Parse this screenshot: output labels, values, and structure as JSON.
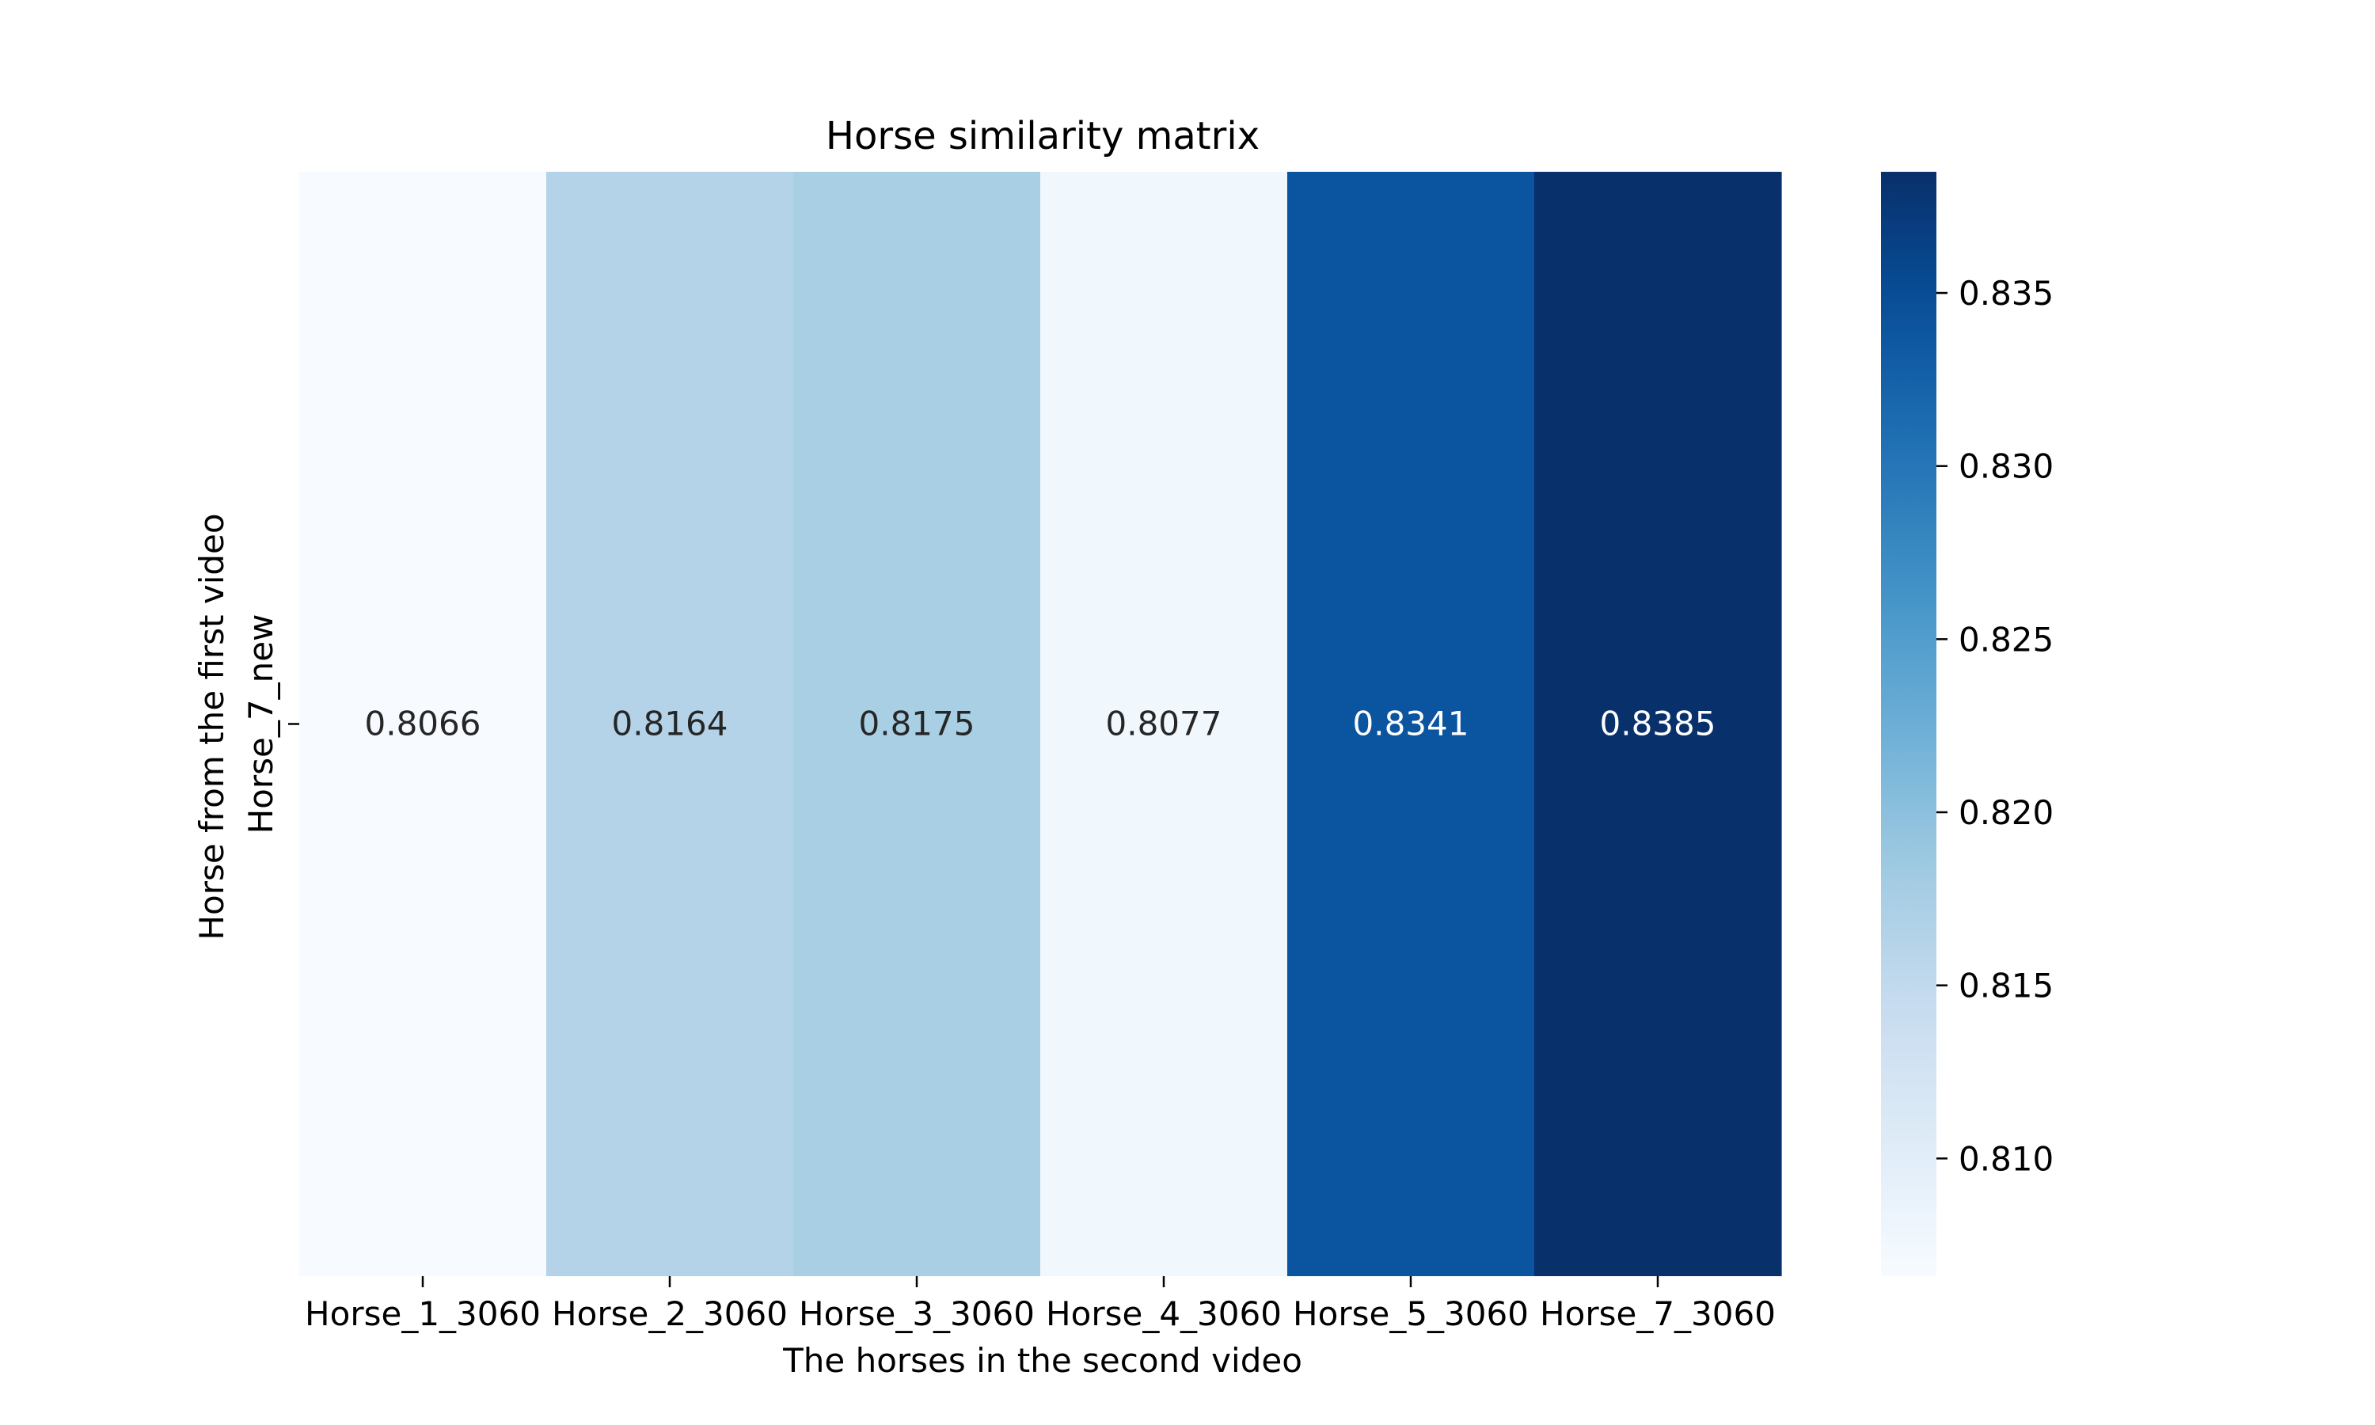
{
  "chart_data": {
    "type": "heatmap",
    "title": "Horse similarity matrix",
    "xlabel": "The horses in the second video",
    "ylabel": "Horse from the first video",
    "x_categories": [
      "Horse_1_3060",
      "Horse_2_3060",
      "Horse_3_3060",
      "Horse_4_3060",
      "Horse_5_3060",
      "Horse_7_3060"
    ],
    "y_categories": [
      "Horse_7_new"
    ],
    "values": [
      [
        0.8066,
        0.8164,
        0.8175,
        0.8077,
        0.8341,
        0.8385
      ]
    ],
    "colormap": "Blues",
    "color_range": [
      0.8066,
      0.8385
    ],
    "annotations": true,
    "annotation_format": "0.0000",
    "colorbar": {
      "ticks": [
        0.81,
        0.815,
        0.82,
        0.825,
        0.83,
        0.835
      ],
      "tick_labels": [
        "0.810",
        "0.815",
        "0.820",
        "0.825",
        "0.830",
        "0.835"
      ]
    },
    "grid": false
  }
}
